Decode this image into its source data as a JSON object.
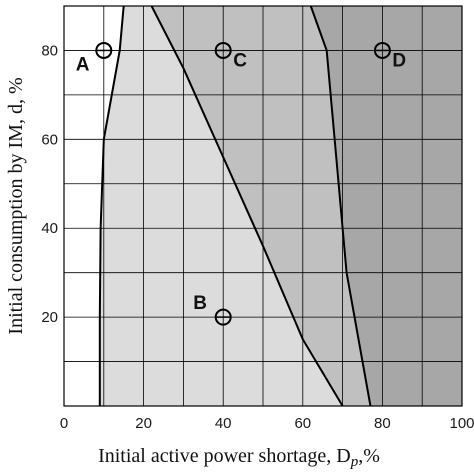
{
  "chart_data": {
    "type": "area",
    "xlabel": "Initial active power shortage, D",
    "xlabel_sub": "p",
    "xlabel_suffix": ",%",
    "ylabel": "Initial consumption by IM, d, %",
    "xlim": [
      0,
      100
    ],
    "ylim": [
      0,
      90
    ],
    "xticks": [
      0,
      20,
      40,
      60,
      80,
      100
    ],
    "yticks": [
      20,
      40,
      60,
      80
    ],
    "grid": true,
    "region_colors": {
      "A": "#ffffff",
      "B": "#dcdcdc",
      "C": "#c0c0c0",
      "D": "#a7a7a7"
    },
    "boundaries": [
      {
        "name": "A-B",
        "x": [
          9,
          9,
          9.2,
          10,
          12,
          14,
          15
        ],
        "y": [
          0,
          20,
          40,
          60,
          70,
          80,
          90
        ]
      },
      {
        "name": "B-C",
        "x": [
          70,
          60,
          50,
          40,
          30,
          22
        ],
        "y": [
          0,
          15,
          36,
          56,
          76,
          90
        ]
      },
      {
        "name": "C-D",
        "x": [
          77,
          71,
          68,
          66,
          62
        ],
        "y": [
          0,
          30,
          60,
          80,
          90
        ]
      }
    ],
    "points": [
      {
        "label": "A",
        "x": 10,
        "y": 80
      },
      {
        "label": "B",
        "x": 40,
        "y": 20
      },
      {
        "label": "C",
        "x": 40,
        "y": 80
      },
      {
        "label": "D",
        "x": 80,
        "y": 80
      }
    ]
  }
}
